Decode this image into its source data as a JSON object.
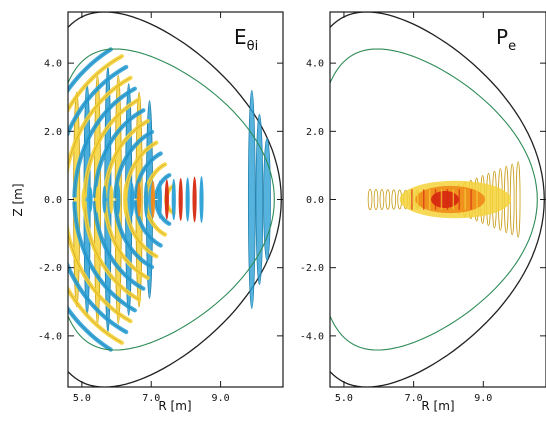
{
  "colors": {
    "frame": "#1a1a1a",
    "boundary": "#222222",
    "separatrix": "#2e8b57",
    "positive_core": "#d62a10",
    "positive_mid": "#f08a18",
    "positive_outer": "#f5d23a",
    "positive_contour": "#c79a12",
    "negative_fill": "#2aa0d6",
    "negative_contour": "#1a7aa6"
  },
  "chart_data": [
    {
      "type": "contour",
      "panel_label": "E",
      "panel_label_sub": "θi",
      "xlabel": "R [m]",
      "ylabel": "Z [m]",
      "xlim": [
        4.6,
        10.8
      ],
      "ylim": [
        -5.5,
        5.5
      ],
      "xticks": [
        5.0,
        7.0,
        9.0
      ],
      "xtick_labels": [
        "5.0",
        "7.0",
        "9.0"
      ],
      "yticks": [
        -4.0,
        -2.0,
        0.0,
        2.0,
        4.0
      ],
      "ytick_labels": [
        "-4.0",
        "-2.0",
        "0.0",
        "2.0",
        "4.0"
      ],
      "boundary": {
        "R0": 7.2,
        "a": 3.55,
        "kappa": 1.55,
        "delta": 0.45
      },
      "separatrix": {
        "R0": 7.35,
        "a": 3.2,
        "kappa": 1.38,
        "delta": 0.45
      },
      "field": "wave_electric_field_fronts",
      "wave_center": [
        7.8,
        0.0
      ]
    },
    {
      "type": "contour",
      "panel_label": "P",
      "panel_label_sub": "e",
      "xlabel": "R [m]",
      "ylabel": "",
      "xlim": [
        4.6,
        10.8
      ],
      "ylim": [
        -5.5,
        5.5
      ],
      "xticks": [
        5.0,
        7.0,
        9.0
      ],
      "xtick_labels": [
        "5.0",
        "7.0",
        "9.0"
      ],
      "yticks": [
        -4.0,
        -2.0,
        0.0,
        2.0,
        4.0
      ],
      "ytick_labels": [
        "-4.0",
        "-2.0",
        "0.0",
        "2.0",
        "4.0"
      ],
      "boundary": {
        "R0": 7.2,
        "a": 3.55,
        "kappa": 1.55,
        "delta": 0.45
      },
      "separatrix": {
        "R0": 7.35,
        "a": 3.2,
        "kappa": 1.38,
        "delta": 0.45
      },
      "field": "electron_power_deposition",
      "deposition_center": [
        7.85,
        0.0
      ]
    }
  ]
}
